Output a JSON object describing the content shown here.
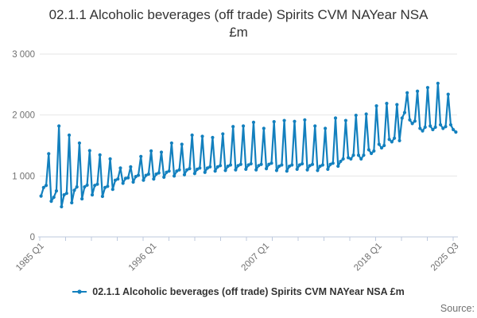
{
  "header": {
    "title": "02.1.1 Alcoholic beverages (off trade) Spirits CVM NAYear NSA £m"
  },
  "legend": {
    "label": "02.1.1 Alcoholic beverages (off trade) Spirits CVM NAYear NSA £m"
  },
  "footer": {
    "source_label": "Source:"
  },
  "colors": {
    "series_blue": "#1380BE",
    "axis_line": "#BDC9DE",
    "gridline": "#E6E6E6",
    "axis_text": "#707070",
    "title_text": "#333333"
  },
  "chart_data": {
    "type": "line",
    "title": "02.1.1 Alcoholic beverages (off trade) Spirits CVM NAYear NSA £m",
    "xlabel": "",
    "ylabel": "",
    "ylim": [
      0,
      3000
    ],
    "grid": true,
    "legend_position": "bottom",
    "frequency": "quarterly",
    "x_start": "1985 Q1",
    "x_end": "2025 Q3",
    "y_ticks": [
      0,
      1000,
      2000,
      3000
    ],
    "y_tick_labels": [
      "0",
      "1 000",
      "2 000",
      "3 000"
    ],
    "x_tick_count": 17,
    "x_labeled_ticks": [
      {
        "index": 0,
        "label": "1985 Q1"
      },
      {
        "index": 44,
        "label": "1996 Q1"
      },
      {
        "index": 88,
        "label": "2007 Q1"
      },
      {
        "index": 132,
        "label": "2018 Q1"
      },
      {
        "index": 162,
        "label": "2025 Q3"
      }
    ],
    "series": [
      {
        "name": "02.1.1 Alcoholic beverages (off trade) Spirits CVM NAYear NSA £m",
        "color": "#1380BE",
        "values": [
          670,
          810,
          845,
          1365,
          585,
          650,
          755,
          1820,
          495,
          690,
          715,
          1670,
          560,
          765,
          820,
          1540,
          625,
          820,
          850,
          1415,
          690,
          845,
          865,
          1345,
          665,
          810,
          830,
          1280,
          780,
          930,
          950,
          1130,
          880,
          960,
          970,
          1150,
          900,
          990,
          1010,
          1320,
          930,
          1010,
          1030,
          1410,
          950,
          1030,
          1050,
          1390,
          980,
          1060,
          1080,
          1540,
          1000,
          1080,
          1100,
          1520,
          1020,
          1100,
          1120,
          1670,
          1040,
          1110,
          1130,
          1650,
          1060,
          1130,
          1150,
          1630,
          1080,
          1150,
          1170,
          1690,
          1090,
          1160,
          1180,
          1810,
          1100,
          1170,
          1190,
          1820,
          1110,
          1180,
          1200,
          1880,
          1100,
          1170,
          1190,
          1780,
          1120,
          1190,
          1210,
          1890,
          1090,
          1160,
          1180,
          1910,
          1080,
          1160,
          1180,
          1895,
          1110,
          1180,
          1200,
          1920,
          1100,
          1170,
          1190,
          1820,
          1090,
          1160,
          1180,
          1780,
          1110,
          1190,
          1210,
          1950,
          1160,
          1240,
          1280,
          1910,
          1300,
          1280,
          1340,
          1995,
          1340,
          1280,
          1340,
          2015,
          1430,
          1370,
          1410,
          2150,
          1520,
          1460,
          1500,
          2190,
          1600,
          1560,
          1620,
          2170,
          1580,
          1950,
          2040,
          2365,
          1920,
          1860,
          1900,
          2390,
          1780,
          1740,
          1800,
          2450,
          1820,
          1760,
          1800,
          2520,
          1840,
          1780,
          1810,
          2340,
          1840,
          1760,
          1720
        ]
      }
    ]
  }
}
